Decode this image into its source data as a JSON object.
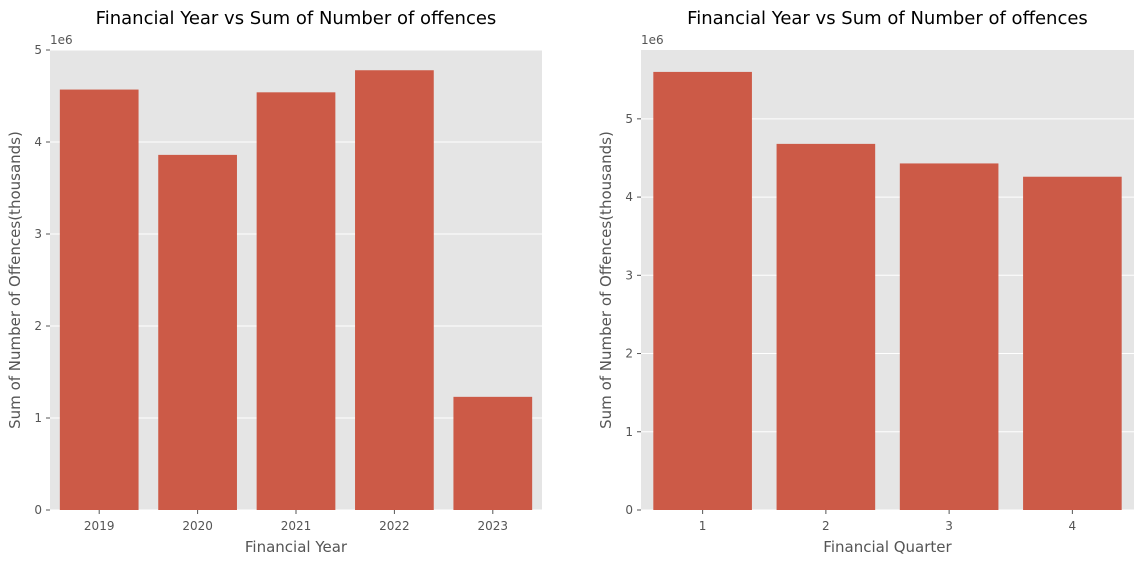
{
  "chart_data": [
    {
      "type": "bar",
      "title": "Financial Year vs Sum of Number of offences",
      "xlabel": "Financial Year",
      "ylabel": "Sum of Number of Offences(thousands)",
      "y_offset_label": "1e6",
      "categories": [
        "2019",
        "2020",
        "2021",
        "2022",
        "2023"
      ],
      "values": [
        4570000,
        3860000,
        4540000,
        4780000,
        1230000
      ],
      "ylim": [
        0,
        5000000
      ],
      "yticks": [
        0,
        1000000,
        2000000,
        3000000,
        4000000,
        5000000
      ],
      "ytick_labels": [
        "0",
        "1",
        "2",
        "3",
        "4",
        "5"
      ],
      "grid": true,
      "color": "#cc5a47",
      "background": "#e5e5e5"
    },
    {
      "type": "bar",
      "title": "Financial Year vs Sum of Number of offences",
      "xlabel": "Financial Quarter",
      "ylabel": "Sum of Number of Offences(thousands)",
      "y_offset_label": "1e6",
      "categories": [
        "1",
        "2",
        "3",
        "4"
      ],
      "values": [
        5600000,
        4680000,
        4430000,
        4260000
      ],
      "ylim": [
        0,
        5880000
      ],
      "yticks": [
        0,
        1000000,
        2000000,
        3000000,
        4000000,
        5000000
      ],
      "ytick_labels": [
        "0",
        "1",
        "2",
        "3",
        "4",
        "5"
      ],
      "grid": true,
      "color": "#cc5a47",
      "background": "#e5e5e5"
    }
  ]
}
